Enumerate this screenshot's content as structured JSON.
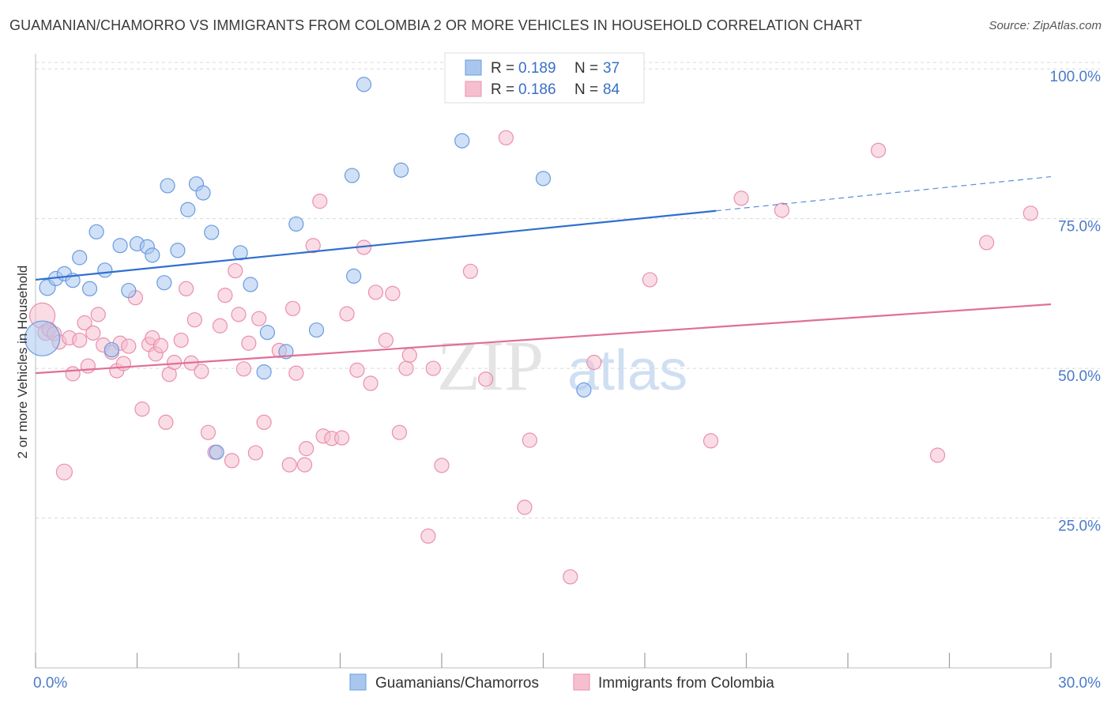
{
  "title": "GUAMANIAN/CHAMORRO VS IMMIGRANTS FROM COLOMBIA 2 OR MORE VEHICLES IN HOUSEHOLD CORRELATION CHART",
  "source": "Source: ZipAtlas.com",
  "watermark": {
    "zip": "ZIP",
    "atlas": "atlas"
  },
  "colors": {
    "blue_fill": "#a9c7ee",
    "blue_stroke": "#6a9be0",
    "blue_line": "#2f6fcf",
    "pink_fill": "#f6bfd0",
    "pink_stroke": "#ea8fae",
    "pink_line": "#e06f98",
    "tick_text": "#4a7bc8",
    "grid": "#d9d9d9"
  },
  "legend": {
    "r_label": "R =",
    "n_label": "N =",
    "blue": {
      "r": "0.189",
      "n": "37"
    },
    "pink": {
      "r": "0.186",
      "n": "84"
    }
  },
  "chart_data": {
    "type": "scatter",
    "title": "GUAMANIAN/CHAMORRO VS IMMIGRANTS FROM COLOMBIA 2 OR MORE VEHICLES IN HOUSEHOLD CORRELATION CHART",
    "xlabel": "",
    "ylabel": "2 or more Vehicles in Household",
    "xlim": [
      0,
      30
    ],
    "ylim": [
      0,
      102
    ],
    "x_tick_labels": [
      "0.0%",
      "30.0%"
    ],
    "y_ticks": [
      25,
      50,
      75,
      100
    ],
    "y_tick_labels": [
      "25.0%",
      "50.0%",
      "75.0%",
      "100.0%"
    ],
    "grid": true,
    "legend_position": "top-center",
    "series": [
      {
        "name": "Guamanians/Chamorros",
        "color": "#a9c7ee",
        "trend": {
          "x0": 0,
          "y0": 64.8,
          "x1": 20.1,
          "y1": 76.3,
          "dash_to_x": 30,
          "dash_to_y": 82.0
        },
        "points": [
          [
            0.2,
            55.0,
            22
          ],
          [
            0.35,
            63.5,
            10
          ],
          [
            0.6,
            65.0,
            9
          ],
          [
            0.85,
            65.8,
            9
          ],
          [
            1.1,
            64.7,
            9
          ],
          [
            1.3,
            68.5,
            9
          ],
          [
            1.6,
            63.3,
            9
          ],
          [
            1.8,
            72.8,
            9
          ],
          [
            2.05,
            66.4,
            9
          ],
          [
            2.25,
            53.1,
            9
          ],
          [
            2.5,
            70.5,
            9
          ],
          [
            2.75,
            63.0,
            9
          ],
          [
            3.0,
            70.8,
            9
          ],
          [
            3.3,
            70.3,
            9
          ],
          [
            3.45,
            68.9,
            9
          ],
          [
            3.8,
            64.3,
            9
          ],
          [
            3.9,
            80.5,
            9
          ],
          [
            4.2,
            69.7,
            9
          ],
          [
            4.5,
            76.5,
            9
          ],
          [
            4.75,
            80.8,
            9
          ],
          [
            4.95,
            79.3,
            9
          ],
          [
            5.2,
            72.7,
            9
          ],
          [
            5.35,
            36.0,
            9
          ],
          [
            6.05,
            69.3,
            9
          ],
          [
            6.35,
            64.0,
            9
          ],
          [
            6.75,
            49.4,
            9
          ],
          [
            6.85,
            56.0,
            9
          ],
          [
            7.4,
            52.8,
            9
          ],
          [
            7.7,
            74.1,
            9
          ],
          [
            8.3,
            56.4,
            9
          ],
          [
            9.35,
            82.2,
            9
          ],
          [
            9.4,
            65.4,
            9
          ],
          [
            9.7,
            97.4,
            9
          ],
          [
            10.8,
            83.1,
            9
          ],
          [
            12.6,
            88.0,
            9
          ],
          [
            15.0,
            81.7,
            9
          ],
          [
            16.2,
            46.4,
            9
          ]
        ]
      },
      {
        "name": "Immigrants from Colombia",
        "color": "#f6bfd0",
        "trend": {
          "x0": 0,
          "y0": 49.2,
          "x1": 30,
          "y1": 60.7
        },
        "points": [
          [
            0.2,
            58.8,
            16
          ],
          [
            0.3,
            56.0,
            10
          ],
          [
            0.4,
            56.5,
            9
          ],
          [
            0.55,
            55.8,
            9
          ],
          [
            0.7,
            54.4,
            9
          ],
          [
            0.85,
            32.7,
            10
          ],
          [
            1.0,
            55.1,
            9
          ],
          [
            1.1,
            49.1,
            9
          ],
          [
            1.3,
            54.7,
            9
          ],
          [
            1.45,
            57.6,
            9
          ],
          [
            1.55,
            50.4,
            9
          ],
          [
            1.7,
            55.9,
            9
          ],
          [
            1.85,
            59.0,
            9
          ],
          [
            2.0,
            53.9,
            9
          ],
          [
            2.25,
            52.7,
            9
          ],
          [
            2.4,
            49.6,
            9
          ],
          [
            2.5,
            54.2,
            9
          ],
          [
            2.6,
            50.8,
            9
          ],
          [
            2.75,
            53.7,
            9
          ],
          [
            2.95,
            61.8,
            9
          ],
          [
            3.15,
            43.2,
            9
          ],
          [
            3.35,
            54.0,
            9
          ],
          [
            3.45,
            55.1,
            9
          ],
          [
            3.55,
            52.4,
            9
          ],
          [
            3.7,
            53.8,
            9
          ],
          [
            3.85,
            41.0,
            9
          ],
          [
            3.95,
            49.0,
            9
          ],
          [
            4.1,
            51.0,
            9
          ],
          [
            4.3,
            54.7,
            9
          ],
          [
            4.45,
            63.3,
            9
          ],
          [
            4.6,
            50.9,
            9
          ],
          [
            4.7,
            58.1,
            9
          ],
          [
            4.9,
            49.5,
            9
          ],
          [
            5.1,
            39.3,
            9
          ],
          [
            5.3,
            36.0,
            9
          ],
          [
            5.45,
            57.1,
            9
          ],
          [
            5.6,
            62.2,
            9
          ],
          [
            5.8,
            34.6,
            9
          ],
          [
            5.9,
            66.3,
            9
          ],
          [
            6.0,
            59.0,
            9
          ],
          [
            6.15,
            49.9,
            9
          ],
          [
            6.3,
            54.2,
            9
          ],
          [
            6.5,
            35.9,
            9
          ],
          [
            6.6,
            58.3,
            9
          ],
          [
            6.75,
            41.0,
            9
          ],
          [
            7.2,
            53.0,
            9
          ],
          [
            7.5,
            33.9,
            9
          ],
          [
            7.6,
            60.0,
            9
          ],
          [
            7.7,
            49.2,
            9
          ],
          [
            8.0,
            36.6,
            9
          ],
          [
            8.2,
            70.5,
            9
          ],
          [
            8.4,
            77.9,
            9
          ],
          [
            8.5,
            38.7,
            9
          ],
          [
            8.75,
            38.3,
            9
          ],
          [
            9.05,
            38.4,
            9
          ],
          [
            9.2,
            59.1,
            9
          ],
          [
            9.5,
            49.7,
            9
          ],
          [
            9.7,
            70.2,
            9
          ],
          [
            9.9,
            47.5,
            9
          ],
          [
            10.05,
            62.7,
            9
          ],
          [
            10.35,
            54.7,
            9
          ],
          [
            10.55,
            62.5,
            9
          ],
          [
            10.75,
            39.3,
            9
          ],
          [
            10.95,
            50.0,
            9
          ],
          [
            11.05,
            52.2,
            9
          ],
          [
            11.6,
            22.0,
            9
          ],
          [
            11.75,
            50.0,
            9
          ],
          [
            12.0,
            33.8,
            9
          ],
          [
            12.85,
            66.2,
            9
          ],
          [
            13.3,
            48.2,
            9
          ],
          [
            13.9,
            88.5,
            9
          ],
          [
            14.45,
            26.8,
            9
          ],
          [
            14.6,
            38.0,
            9
          ],
          [
            15.8,
            15.2,
            9
          ],
          [
            16.5,
            51.0,
            9
          ],
          [
            18.15,
            64.8,
            9
          ],
          [
            19.95,
            37.9,
            9
          ],
          [
            20.85,
            78.4,
            9
          ],
          [
            22.05,
            76.4,
            9
          ],
          [
            24.9,
            86.4,
            9
          ],
          [
            26.65,
            35.5,
            9
          ],
          [
            28.1,
            71.0,
            9
          ],
          [
            29.4,
            75.9,
            9
          ],
          [
            7.95,
            33.9,
            9
          ]
        ]
      }
    ]
  }
}
